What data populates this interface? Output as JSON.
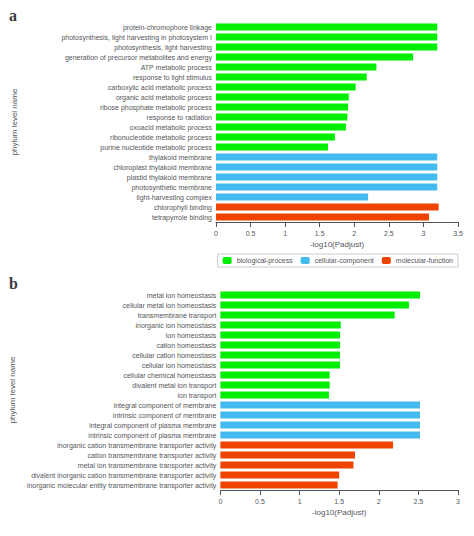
{
  "chart_data": [
    {
      "type": "bar",
      "title": "a",
      "orientation": "horizontal",
      "categories": [
        "protein-chromophore linkage",
        "photosynthesis, light harvesting in photosystem I",
        "photosynthesis, light harvesting",
        "generation of precursor metabolites and energy",
        "ATP metabolic process",
        "response to light stimulus",
        "carboxylic acid metabolic process",
        "organic acid metabolic process",
        "ribose phosphate metabolic process",
        "response to radiation",
        "oxoacid metabolic process",
        "ribonucleotide metabolic process",
        "purine nucleotide metabolic process",
        "thylakoid membrane",
        "chloroplast thylakoid membrane",
        "plastid thylakoid membrane",
        "photosynthetic membrane",
        "light-harvesting complex",
        "chlorophyll binding",
        "tetrapyrrole binding"
      ],
      "series": [
        {
          "name": "biological-process",
          "color": "#00ee00",
          "values": [
            3.2,
            3.2,
            3.2,
            2.85,
            2.32,
            2.18,
            2.02,
            1.92,
            1.91,
            1.9,
            1.88,
            1.72,
            1.62,
            null,
            null,
            null,
            null,
            null,
            null,
            null
          ]
        },
        {
          "name": "cellular-component",
          "color": "#44bbee",
          "values": [
            null,
            null,
            null,
            null,
            null,
            null,
            null,
            null,
            null,
            null,
            null,
            null,
            null,
            3.2,
            3.2,
            3.2,
            3.2,
            2.2,
            null,
            null
          ]
        },
        {
          "name": "molecular-function",
          "color": "#ee4400",
          "values": [
            null,
            null,
            null,
            null,
            null,
            null,
            null,
            null,
            null,
            null,
            null,
            null,
            null,
            null,
            null,
            null,
            null,
            null,
            3.22,
            3.08
          ]
        }
      ],
      "xlabel": "-log10(Padjust)",
      "ylabel": "phylum level name",
      "xlim": [
        0,
        3.5
      ],
      "xticks": [
        0,
        0.5,
        1,
        1.5,
        2,
        2.5,
        3,
        3.5
      ],
      "grid": false,
      "legend": "lower right"
    },
    {
      "type": "bar",
      "title": "b",
      "orientation": "horizontal",
      "categories": [
        "metal ion homeostasis",
        "cellular metal ion homeostasis",
        "transmembrane transport",
        "inorganic ion homeostasis",
        "ion homeostasis",
        "cation homeostasis",
        "cellular cation homeostasis",
        "cellular ion homeostasis",
        "cellular chemical homeostasis",
        "divalent metal ion transport",
        "ion transport",
        "integral component of membrane",
        "intrinsic component of membrane",
        "integral component of plasma membrane",
        "intrinsic component of plasma membrane",
        "inorganic cation transmembrane transporter activity",
        "cation transmembrane transporter activity",
        "metal ion transmembrane transporter activity",
        "divalent inorganic cation transmembrane transporter activity",
        "inorganic molecular entity transmembrane transporter activity"
      ],
      "values": [
        2.52,
        2.38,
        2.2,
        1.52,
        1.51,
        1.51,
        1.51,
        1.51,
        1.38,
        1.38,
        1.37,
        2.52,
        2.52,
        2.52,
        2.52,
        2.18,
        1.7,
        1.68,
        1.5,
        1.48
      ],
      "colors": [
        "#00ee00",
        "#00ee00",
        "#00ee00",
        "#00ee00",
        "#00ee00",
        "#00ee00",
        "#00ee00",
        "#00ee00",
        "#00ee00",
        "#00ee00",
        "#00ee00",
        "#44bbee",
        "#44bbee",
        "#44bbee",
        "#44bbee",
        "#ee4400",
        "#ee4400",
        "#ee4400",
        "#ee4400",
        "#ee4400"
      ],
      "xlabel": "-log10(Padjust)",
      "ylabel": "phylum level name",
      "xlim": [
        0,
        3.0
      ],
      "xticks": [
        0,
        0.5,
        1,
        1.5,
        2,
        2.5,
        3
      ],
      "grid": false
    }
  ]
}
